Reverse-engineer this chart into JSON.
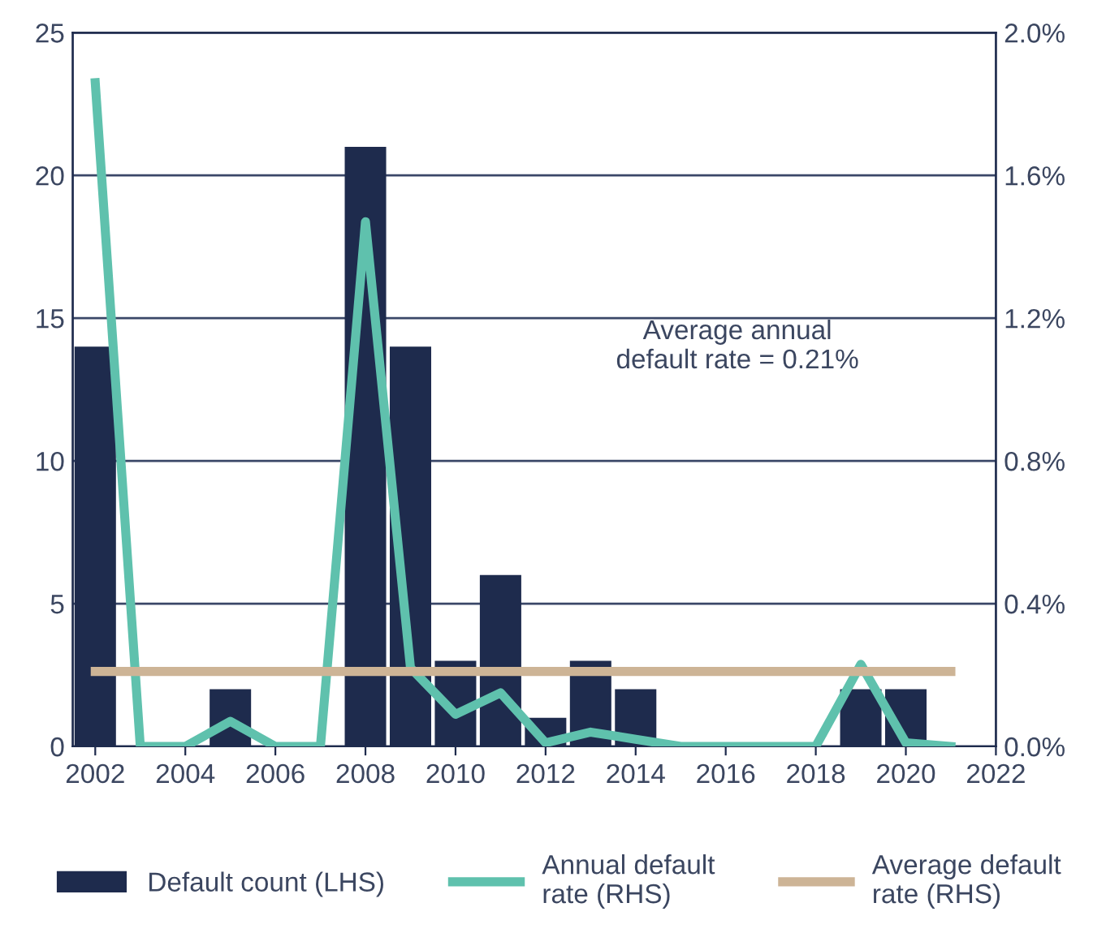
{
  "chart_data": {
    "type": "bar",
    "x": [
      2002,
      2003,
      2004,
      2005,
      2006,
      2007,
      2008,
      2009,
      2010,
      2011,
      2012,
      2013,
      2014,
      2015,
      2016,
      2017,
      2018,
      2019,
      2020,
      2021
    ],
    "series": [
      {
        "name": "Default count (LHS)",
        "color": "#1e2b4d",
        "values": [
          14,
          0,
          0,
          2,
          0,
          0,
          21,
          14,
          3,
          6,
          1,
          3,
          2,
          0,
          0,
          0,
          0,
          2,
          2,
          0
        ]
      },
      {
        "name": "Annual default rate (RHS)",
        "type": "line",
        "axis": "y2",
        "color": "#5fc1ad",
        "values": [
          1.86,
          0,
          0,
          0.07,
          0,
          0,
          1.47,
          0.22,
          0.09,
          0.15,
          0.01,
          0.04,
          0.02,
          0,
          0,
          0,
          0,
          0.23,
          0.01,
          0
        ]
      },
      {
        "name": "Average default rate (RHS)",
        "type": "line",
        "axis": "y2",
        "color": "#cdb496",
        "values": [
          0.21,
          0.21,
          0.21,
          0.21,
          0.21,
          0.21,
          0.21,
          0.21,
          0.21,
          0.21,
          0.21,
          0.21,
          0.21,
          0.21,
          0.21,
          0.21,
          0.21,
          0.21,
          0.21,
          0.21
        ]
      }
    ],
    "xlim": [
      2001.5,
      2022
    ],
    "xticks": [
      2002,
      2004,
      2006,
      2008,
      2010,
      2012,
      2014,
      2016,
      2018,
      2020,
      2022
    ],
    "ylim": [
      0,
      25
    ],
    "yticks": [
      0,
      5,
      10,
      15,
      20,
      25
    ],
    "y2lim": [
      0,
      2.0
    ],
    "y2ticks": [
      {
        "value": 0,
        "label": "0.0%"
      },
      {
        "value": 0.4,
        "label": "0.4%"
      },
      {
        "value": 0.8,
        "label": "0.8%"
      },
      {
        "value": 1.2,
        "label": "1.2%"
      },
      {
        "value": 1.6,
        "label": "1.6%"
      },
      {
        "value": 2.0,
        "label": "2.0%"
      }
    ],
    "annotations": [
      "Average annual\ndefault rate = 0.21%"
    ],
    "grid": "y",
    "legend": "bottom"
  }
}
